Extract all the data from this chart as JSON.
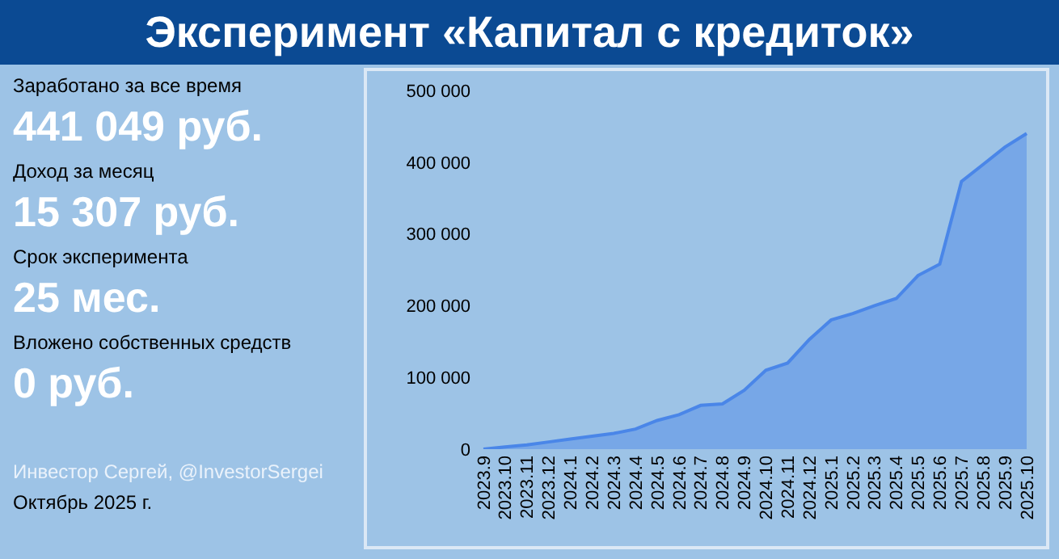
{
  "chart_data": {
    "type": "area",
    "title": "Эксперимент «Капитал с кредиток»",
    "categories": [
      "2023.9",
      "2023.10",
      "2023.11",
      "2023.12",
      "2024.1",
      "2024.2",
      "2024.3",
      "2024.4",
      "2024.5",
      "2024.6",
      "2024.7",
      "2024.8",
      "2024.9",
      "2024.10",
      "2024.11",
      "2024.12",
      "2025.1",
      "2025.2",
      "2025.3",
      "2025.4",
      "2025.5",
      "2025.6",
      "2025.7",
      "2025.8",
      "2025.9",
      "2025.10"
    ],
    "series": [
      {
        "color": "#4a86e8",
        "values": [
          0,
          3000,
          6000,
          10000,
          14000,
          18000,
          22000,
          28000,
          40000,
          48000,
          61000,
          63000,
          82000,
          110000,
          120000,
          153000,
          180000,
          189000,
          200000,
          210000,
          242000,
          258000,
          373000,
          397000,
          421000,
          440000
        ]
      }
    ],
    "ylim": [
      0,
      500000
    ],
    "yticks": [
      {
        "value": 0,
        "label": "0"
      },
      {
        "value": 100000,
        "label": "100 000"
      },
      {
        "value": 200000,
        "label": "200 000"
      },
      {
        "value": 300000,
        "label": "300 000"
      },
      {
        "value": 400000,
        "label": "400 000"
      },
      {
        "value": 500000,
        "label": "500 000"
      }
    ],
    "grid": false,
    "legend": false,
    "annotations": [
      "Заработано за все время",
      "441 049 руб.",
      "Доход за месяц",
      "15 307 руб.",
      "Срок эксперимента",
      "25 мес.",
      "Вложено собственных средств",
      "0 руб.",
      "Инвестор Сергей, @InvestorSergei",
      "Октябрь 2025 г."
    ]
  }
}
